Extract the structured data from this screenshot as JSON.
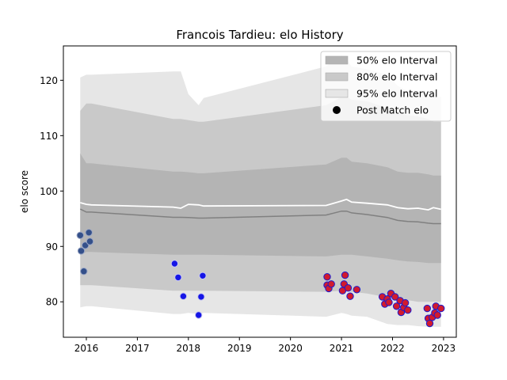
{
  "chart_data": {
    "type": "area",
    "title": "Francois Tardieu: elo History",
    "xlabel": "",
    "ylabel": "elo score",
    "xlim": [
      2015.55,
      2023.25
    ],
    "ylim": [
      73.6,
      126.2
    ],
    "x_ticks": [
      2016,
      2017,
      2018,
      2019,
      2020,
      2021,
      2022,
      2023
    ],
    "y_ticks": [
      80,
      90,
      100,
      110,
      120
    ],
    "grid": false,
    "legend_position": "top-right",
    "legend": [
      "50% elo Interval",
      "80% elo Interval",
      "95% elo Interval",
      "Post Match elo"
    ],
    "band_x": [
      2015.88,
      2016.0,
      2016.1,
      2017.7,
      2017.85,
      2018.0,
      2018.2,
      2018.3,
      2020.7,
      2021.0,
      2021.1,
      2021.2,
      2021.5,
      2021.9,
      2022.1,
      2022.3,
      2022.5,
      2022.7,
      2022.8,
      2022.95
    ],
    "mean": [
      97.9,
      97.6,
      97.5,
      97.1,
      96.9,
      97.6,
      97.5,
      97.3,
      97.4,
      98.2,
      98.5,
      98.0,
      97.8,
      97.5,
      97.0,
      96.8,
      96.9,
      96.6,
      97.0,
      96.7
    ],
    "bands": [
      {
        "name": "95% elo Interval",
        "color": "#e6e6e6",
        "upper": [
          120.5,
          121.0,
          121.0,
          121.6,
          121.6,
          117.5,
          115.5,
          116.8,
          122.5,
          124.5,
          123.8,
          122.5,
          122.0,
          121.0,
          119.0,
          118.0,
          118.0,
          117.5,
          117.0,
          117.0
        ],
        "lower": [
          79.0,
          79.2,
          79.2,
          77.8,
          77.8,
          78.0,
          77.8,
          78.0,
          77.3,
          78.0,
          77.8,
          77.5,
          77.3,
          76.0,
          75.8,
          75.8,
          75.6,
          75.5,
          75.5,
          75.5
        ]
      },
      {
        "name": "80% elo Interval",
        "color": "#c9c9c9",
        "upper": [
          114.5,
          115.8,
          115.8,
          113.0,
          113.0,
          112.8,
          112.5,
          112.5,
          115.5,
          117.0,
          117.0,
          116.5,
          116.2,
          115.0,
          114.0,
          113.7,
          113.5,
          113.0,
          112.5,
          112.5
        ],
        "lower": [
          83.0,
          83.0,
          83.0,
          82.0,
          82.0,
          82.0,
          82.0,
          82.0,
          81.8,
          82.0,
          82.0,
          81.8,
          81.5,
          80.8,
          80.5,
          80.3,
          80.0,
          80.0,
          80.0,
          80.0
        ]
      },
      {
        "name": "50% elo Interval",
        "color": "#b4b4b4",
        "upper": [
          106.8,
          105.0,
          105.0,
          103.5,
          103.5,
          103.4,
          103.2,
          103.2,
          104.8,
          106.0,
          106.0,
          105.3,
          105.0,
          104.3,
          103.5,
          103.3,
          103.3,
          103.0,
          102.8,
          102.8
        ],
        "lower": [
          88.5,
          89.0,
          89.0,
          88.5,
          88.5,
          88.5,
          88.5,
          88.5,
          88.2,
          88.5,
          88.5,
          88.5,
          88.2,
          87.8,
          87.5,
          87.3,
          87.2,
          87.0,
          87.0,
          87.0
        ]
      }
    ],
    "post_match": [
      {
        "x": 2015.88,
        "y": 92.0,
        "style": "dark"
      },
      {
        "x": 2015.9,
        "y": 89.2,
        "style": "dark"
      },
      {
        "x": 2015.95,
        "y": 85.5,
        "style": "dark"
      },
      {
        "x": 2015.98,
        "y": 90.2,
        "style": "dark"
      },
      {
        "x": 2016.05,
        "y": 92.5,
        "style": "dark"
      },
      {
        "x": 2016.07,
        "y": 90.9,
        "style": "dark"
      },
      {
        "x": 2017.73,
        "y": 86.9,
        "style": "blue"
      },
      {
        "x": 2017.8,
        "y": 84.4,
        "style": "blue"
      },
      {
        "x": 2017.9,
        "y": 81.0,
        "style": "blue"
      },
      {
        "x": 2018.2,
        "y": 77.6,
        "style": "blue"
      },
      {
        "x": 2018.25,
        "y": 80.9,
        "style": "blue"
      },
      {
        "x": 2018.28,
        "y": 84.7,
        "style": "blue"
      },
      {
        "x": 2020.72,
        "y": 84.5,
        "style": "red"
      },
      {
        "x": 2020.72,
        "y": 83.0,
        "style": "red"
      },
      {
        "x": 2020.75,
        "y": 82.4,
        "style": "red"
      },
      {
        "x": 2020.8,
        "y": 83.2,
        "style": "red"
      },
      {
        "x": 2021.02,
        "y": 82.0,
        "style": "red"
      },
      {
        "x": 2021.05,
        "y": 83.2,
        "style": "red"
      },
      {
        "x": 2021.07,
        "y": 84.8,
        "style": "red"
      },
      {
        "x": 2021.13,
        "y": 82.5,
        "style": "red"
      },
      {
        "x": 2021.17,
        "y": 81.0,
        "style": "red"
      },
      {
        "x": 2021.3,
        "y": 82.2,
        "style": "red"
      },
      {
        "x": 2021.8,
        "y": 80.9,
        "style": "red"
      },
      {
        "x": 2021.85,
        "y": 79.6,
        "style": "red"
      },
      {
        "x": 2021.9,
        "y": 80.5,
        "style": "red"
      },
      {
        "x": 2021.93,
        "y": 79.9,
        "style": "red"
      },
      {
        "x": 2021.97,
        "y": 81.5,
        "style": "red"
      },
      {
        "x": 2022.05,
        "y": 80.9,
        "style": "red"
      },
      {
        "x": 2022.08,
        "y": 79.2,
        "style": "red"
      },
      {
        "x": 2022.15,
        "y": 80.2,
        "style": "red"
      },
      {
        "x": 2022.17,
        "y": 78.1,
        "style": "red"
      },
      {
        "x": 2022.22,
        "y": 79.0,
        "style": "red"
      },
      {
        "x": 2022.25,
        "y": 79.8,
        "style": "red"
      },
      {
        "x": 2022.3,
        "y": 78.5,
        "style": "red"
      },
      {
        "x": 2022.68,
        "y": 78.8,
        "style": "red"
      },
      {
        "x": 2022.7,
        "y": 77.0,
        "style": "red"
      },
      {
        "x": 2022.73,
        "y": 76.1,
        "style": "red"
      },
      {
        "x": 2022.78,
        "y": 77.2,
        "style": "red"
      },
      {
        "x": 2022.83,
        "y": 78.0,
        "style": "red"
      },
      {
        "x": 2022.85,
        "y": 79.2,
        "style": "red"
      },
      {
        "x": 2022.88,
        "y": 77.6,
        "style": "red"
      },
      {
        "x": 2022.95,
        "y": 78.8,
        "style": "red"
      }
    ],
    "colors": {
      "mean_line": "#ffffff",
      "median_line": "#808080",
      "point_dark_fill": "#34508a",
      "point_dark_edge": "#9aa6c4",
      "point_blue_fill": "#1515e6",
      "point_blue_edge": "#c8c8f0",
      "point_red_fill": "#d11a2e",
      "point_red_edge": "#1a1ad0"
    }
  }
}
